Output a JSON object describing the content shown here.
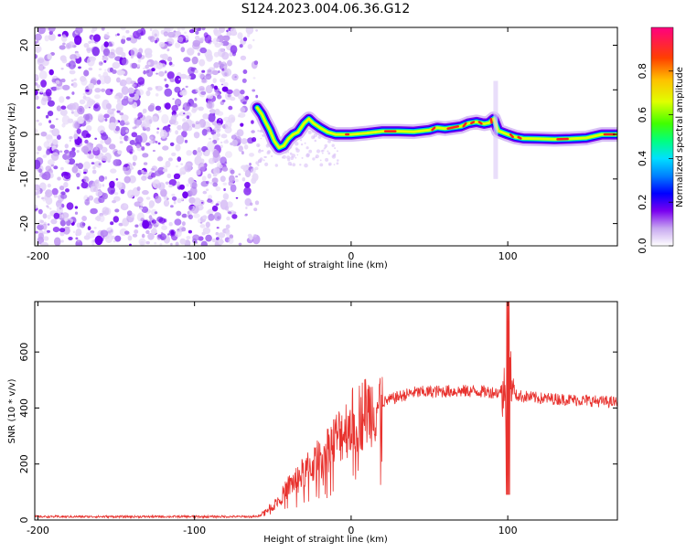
{
  "title": "S124.2023.004.06.36.G12",
  "chart_data": [
    {
      "type": "heatmap",
      "xlabel": "Height of straight line (km)",
      "ylabel": "Frequency (Hz)",
      "xlim": [
        -202,
        170
      ],
      "ylim": [
        -25,
        24
      ],
      "xticks": [
        -200,
        -100,
        0,
        100
      ],
      "yticks": [
        -20,
        -10,
        0,
        10,
        20
      ],
      "noise_region_x": [
        -202,
        -60
      ],
      "colorbar": {
        "label": "Normalized spectral amplitude",
        "range": [
          0,
          1
        ],
        "ticks": [
          0.0,
          0.2,
          0.4,
          0.6,
          0.8
        ],
        "colors": [
          "#ffffff",
          "#c8a8f0",
          "#7a00f0",
          "#0000ff",
          "#0080ff",
          "#00e0ff",
          "#00ff80",
          "#40ff00",
          "#e0ff00",
          "#ffc000",
          "#ff4000",
          "#ff0080"
        ]
      },
      "ridge": {
        "x": [
          -60,
          -57,
          -55,
          -52,
          -49,
          -46,
          -43,
          -40,
          -37,
          -34,
          -30,
          -27,
          -24,
          -20,
          -15,
          -10,
          -5,
          0,
          10,
          20,
          30,
          40,
          50,
          55,
          60,
          70,
          75,
          80,
          85,
          88,
          91,
          94,
          100,
          105,
          110,
          120,
          130,
          140,
          150,
          160,
          170
        ],
        "y": [
          6,
          4.5,
          3,
          1,
          -1.5,
          -3,
          -2.5,
          -1,
          0,
          0.5,
          2.5,
          3.5,
          2.5,
          1.5,
          0.5,
          0,
          0,
          0,
          0.3,
          0.7,
          0.7,
          0.6,
          1,
          1.5,
          1.3,
          1.8,
          2.5,
          2.8,
          2.4,
          2.6,
          3.5,
          0.8,
          0,
          -0.6,
          -0.9,
          -1,
          -1.1,
          -1,
          -0.8,
          0,
          0
        ]
      }
    },
    {
      "type": "line",
      "xlabel": "Height of straight line (km)",
      "ylabel": "SNR (10 * v/v)",
      "xlim": [
        -202,
        170
      ],
      "ylim": [
        0,
        780
      ],
      "xticks": [
        -200,
        -100,
        0,
        100
      ],
      "yticks": [
        0,
        200,
        400,
        600
      ],
      "line_color": "#e8322e",
      "envelope": {
        "x": [
          -202,
          -60,
          -50,
          -45,
          -40,
          -30,
          -20,
          -10,
          0,
          10,
          20,
          30,
          40,
          60,
          80,
          95,
          100,
          105,
          120,
          140,
          170
        ],
        "y": [
          12,
          12,
          50,
          80,
          120,
          170,
          220,
          290,
          350,
          390,
          420,
          440,
          455,
          460,
          460,
          455,
          450,
          445,
          435,
          430,
          420
        ]
      },
      "spike": {
        "x": 100,
        "max": 780,
        "min": 90
      }
    }
  ]
}
